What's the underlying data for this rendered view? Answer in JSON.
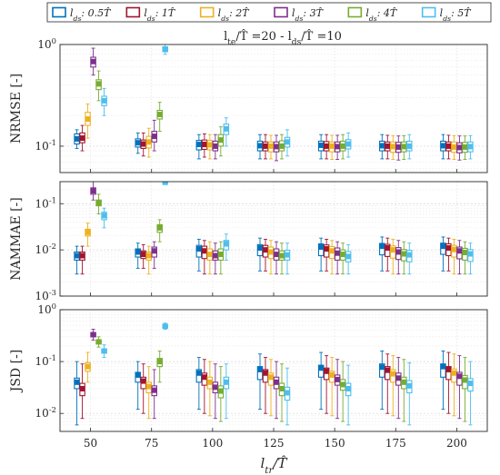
{
  "chart_data": {
    "type": "boxplot",
    "title": "l_te/T̂ =20 - l_ds/T̂ =10",
    "xlabel": "l_tr/T̂",
    "categories": [
      "50",
      "75",
      "100",
      "125",
      "150",
      "175",
      "200"
    ],
    "legend": {
      "placement": "top",
      "entries": [
        {
          "label": "l_ds: 0.5T̂",
          "color": "#0072BD"
        },
        {
          "label": "l_ds: 1T̂",
          "color": "#A2142F"
        },
        {
          "label": "l_ds: 2T̂",
          "color": "#EDB120"
        },
        {
          "label": "l_ds: 3T̂",
          "color": "#7E2F8E"
        },
        {
          "label": "l_ds: 4T̂",
          "color": "#77AC30"
        },
        {
          "label": "l_ds: 5T̂",
          "color": "#4DBEEE"
        }
      ]
    },
    "panels": [
      {
        "ylabel": "NRMSE [-]",
        "yscale": "log",
        "ylim": [
          0.055,
          1
        ],
        "yticks": [
          {
            "v": 1,
            "label": "10^0"
          },
          {
            "v": 0.1,
            "label": "10^-1"
          }
        ],
        "groups": [
          [
            [
              0.095,
              0.105,
              0.118,
              0.132,
              0.145
            ],
            [
              0.09,
              0.108,
              0.12,
              0.135,
              0.16
            ],
            [
              0.12,
              0.16,
              0.185,
              0.215,
              0.26
            ],
            [
              0.5,
              0.6,
              0.68,
              0.75,
              0.92
            ],
            [
              0.28,
              0.36,
              0.41,
              0.45,
              0.55
            ],
            [
              0.2,
              0.25,
              0.28,
              0.31,
              0.37
            ]
          ],
          [
            [
              0.085,
              0.098,
              0.108,
              0.118,
              0.135
            ],
            [
              0.08,
              0.095,
              0.105,
              0.115,
              0.135
            ],
            [
              0.078,
              0.096,
              0.11,
              0.125,
              0.15
            ],
            [
              0.09,
              0.11,
              0.125,
              0.14,
              0.18
            ],
            [
              0.14,
              0.185,
              0.205,
              0.225,
              0.27
            ],
            [
              0.8,
              0.85,
              0.9,
              0.95,
              1.0
            ]
          ],
          [
            [
              0.075,
              0.092,
              0.104,
              0.114,
              0.13
            ],
            [
              0.078,
              0.093,
              0.104,
              0.115,
              0.132
            ],
            [
              0.075,
              0.092,
              0.103,
              0.114,
              0.13
            ],
            [
              0.075,
              0.09,
              0.1,
              0.112,
              0.13
            ],
            [
              0.08,
              0.1,
              0.115,
              0.13,
              0.155
            ],
            [
              0.1,
              0.13,
              0.148,
              0.165,
              0.19
            ]
          ],
          [
            [
              0.075,
              0.09,
              0.101,
              0.112,
              0.13
            ],
            [
              0.075,
              0.09,
              0.1,
              0.11,
              0.13
            ],
            [
              0.075,
              0.088,
              0.1,
              0.11,
              0.128
            ],
            [
              0.072,
              0.088,
              0.099,
              0.11,
              0.128
            ],
            [
              0.075,
              0.09,
              0.1,
              0.113,
              0.13
            ],
            [
              0.08,
              0.098,
              0.11,
              0.122,
              0.145
            ]
          ],
          [
            [
              0.075,
              0.09,
              0.102,
              0.112,
              0.13
            ],
            [
              0.075,
              0.09,
              0.1,
              0.111,
              0.13
            ],
            [
              0.074,
              0.088,
              0.1,
              0.11,
              0.128
            ],
            [
              0.074,
              0.088,
              0.099,
              0.11,
              0.128
            ],
            [
              0.075,
              0.09,
              0.1,
              0.112,
              0.13
            ],
            [
              0.078,
              0.094,
              0.105,
              0.116,
              0.135
            ]
          ],
          [
            [
              0.075,
              0.09,
              0.101,
              0.112,
              0.13
            ],
            [
              0.075,
              0.09,
              0.1,
              0.11,
              0.128
            ],
            [
              0.074,
              0.087,
              0.099,
              0.11,
              0.127
            ],
            [
              0.073,
              0.087,
              0.098,
              0.109,
              0.126
            ],
            [
              0.074,
              0.088,
              0.099,
              0.11,
              0.127
            ],
            [
              0.075,
              0.09,
              0.1,
              0.112,
              0.13
            ]
          ],
          [
            [
              0.075,
              0.09,
              0.101,
              0.112,
              0.13
            ],
            [
              0.075,
              0.09,
              0.1,
              0.11,
              0.128
            ],
            [
              0.074,
              0.087,
              0.098,
              0.11,
              0.127
            ],
            [
              0.073,
              0.086,
              0.097,
              0.108,
              0.126
            ],
            [
              0.074,
              0.087,
              0.098,
              0.109,
              0.126
            ],
            [
              0.075,
              0.088,
              0.099,
              0.11,
              0.127
            ]
          ]
        ]
      },
      {
        "ylabel": "NAMMAE [-]",
        "yscale": "log",
        "ylim": [
          0.001,
          0.3
        ],
        "yticks": [
          {
            "v": 0.1,
            "label": "10^-1"
          },
          {
            "v": 0.01,
            "label": "10^-2"
          },
          {
            "v": 0.001,
            "label": "10^-3"
          }
        ],
        "groups": [
          [
            [
              0.003,
              0.006,
              0.0075,
              0.009,
              0.012
            ],
            [
              0.003,
              0.006,
              0.0075,
              0.009,
              0.012
            ],
            [
              0.012,
              0.02,
              0.024,
              0.028,
              0.038
            ],
            [
              0.12,
              0.16,
              0.19,
              0.22,
              0.3
            ],
            [
              0.06,
              0.09,
              0.105,
              0.12,
              0.16
            ],
            [
              0.03,
              0.045,
              0.055,
              0.065,
              0.08
            ]
          ],
          [
            [
              0.004,
              0.007,
              0.009,
              0.0105,
              0.014
            ],
            [
              0.004,
              0.0065,
              0.008,
              0.0095,
              0.013
            ],
            [
              0.003,
              0.006,
              0.0075,
              0.009,
              0.012
            ],
            [
              0.004,
              0.007,
              0.0095,
              0.0115,
              0.015
            ],
            [
              0.015,
              0.024,
              0.03,
              0.035,
              0.045
            ],
            [
              0.28,
              0.28,
              0.29,
              0.3,
              0.3
            ]
          ],
          [
            [
              0.0035,
              0.007,
              0.0105,
              0.0125,
              0.017
            ],
            [
              0.003,
              0.0065,
              0.0095,
              0.012,
              0.016
            ],
            [
              0.003,
              0.006,
              0.008,
              0.0105,
              0.015
            ],
            [
              0.003,
              0.006,
              0.0075,
              0.0095,
              0.014
            ],
            [
              0.003,
              0.006,
              0.008,
              0.0105,
              0.015
            ],
            [
              0.006,
              0.01,
              0.0135,
              0.016,
              0.022
            ]
          ],
          [
            [
              0.0035,
              0.0075,
              0.011,
              0.013,
              0.018
            ],
            [
              0.0035,
              0.007,
              0.01,
              0.0125,
              0.017
            ],
            [
              0.003,
              0.0065,
              0.009,
              0.0115,
              0.016
            ],
            [
              0.003,
              0.006,
              0.008,
              0.0105,
              0.015
            ],
            [
              0.003,
              0.006,
              0.0075,
              0.0095,
              0.014
            ],
            [
              0.003,
              0.006,
              0.0078,
              0.0098,
              0.014
            ]
          ],
          [
            [
              0.0035,
              0.0075,
              0.0115,
              0.0135,
              0.018
            ],
            [
              0.0035,
              0.007,
              0.0105,
              0.0128,
              0.017
            ],
            [
              0.003,
              0.0065,
              0.0095,
              0.0118,
              0.016
            ],
            [
              0.003,
              0.006,
              0.0085,
              0.011,
              0.015
            ],
            [
              0.003,
              0.006,
              0.008,
              0.01,
              0.014
            ],
            [
              0.003,
              0.0055,
              0.0072,
              0.0092,
              0.013
            ]
          ],
          [
            [
              0.0035,
              0.0078,
              0.012,
              0.0138,
              0.019
            ],
            [
              0.0035,
              0.0072,
              0.011,
              0.0132,
              0.018
            ],
            [
              0.003,
              0.0066,
              0.01,
              0.0122,
              0.017
            ],
            [
              0.003,
              0.0062,
              0.009,
              0.0112,
              0.016
            ],
            [
              0.003,
              0.0058,
              0.0082,
              0.0102,
              0.015
            ],
            [
              0.003,
              0.0055,
              0.0078,
              0.0098,
              0.014
            ]
          ],
          [
            [
              0.0035,
              0.008,
              0.012,
              0.014,
              0.019
            ],
            [
              0.0035,
              0.0075,
              0.011,
              0.0135,
              0.018
            ],
            [
              0.003,
              0.007,
              0.0102,
              0.0125,
              0.017
            ],
            [
              0.003,
              0.0064,
              0.0095,
              0.0115,
              0.016
            ],
            [
              0.003,
              0.006,
              0.0088,
              0.0108,
              0.015
            ],
            [
              0.003,
              0.0056,
              0.0082,
              0.0102,
              0.014
            ]
          ]
        ]
      },
      {
        "ylabel": "JSD [-]",
        "yscale": "log",
        "ylim": [
          0.0045,
          1
        ],
        "yticks": [
          {
            "v": 1,
            "label": "10^0"
          },
          {
            "v": 0.1,
            "label": "10^-1"
          },
          {
            "v": 0.01,
            "label": "10^-2"
          }
        ],
        "groups": [
          [
            [
              0.006,
              0.03,
              0.04,
              0.048,
              0.1
            ],
            [
              0.008,
              0.022,
              0.03,
              0.038,
              0.09
            ],
            [
              0.04,
              0.065,
              0.08,
              0.095,
              0.15
            ],
            [
              0.26,
              0.3,
              0.33,
              0.36,
              0.42
            ],
            [
              0.19,
              0.22,
              0.24,
              0.26,
              0.3
            ],
            [
              0.12,
              0.145,
              0.16,
              0.175,
              0.21
            ]
          ],
          [
            [
              0.012,
              0.04,
              0.055,
              0.062,
              0.1
            ],
            [
              0.01,
              0.03,
              0.042,
              0.05,
              0.09
            ],
            [
              0.008,
              0.025,
              0.033,
              0.04,
              0.08
            ],
            [
              0.008,
              0.022,
              0.028,
              0.034,
              0.07
            ],
            [
              0.04,
              0.08,
              0.1,
              0.115,
              0.16
            ],
            [
              0.42,
              0.45,
              0.48,
              0.5,
              0.55
            ]
          ],
          [
            [
              0.012,
              0.04,
              0.06,
              0.07,
              0.12
            ],
            [
              0.01,
              0.035,
              0.05,
              0.06,
              0.11
            ],
            [
              0.009,
              0.03,
              0.04,
              0.05,
              0.1
            ],
            [
              0.008,
              0.025,
              0.032,
              0.04,
              0.09
            ],
            [
              0.007,
              0.02,
              0.027,
              0.034,
              0.08
            ],
            [
              0.008,
              0.03,
              0.04,
              0.05,
              0.09
            ]
          ],
          [
            [
              0.012,
              0.045,
              0.07,
              0.08,
              0.14
            ],
            [
              0.01,
              0.04,
              0.06,
              0.07,
              0.12
            ],
            [
              0.009,
              0.035,
              0.05,
              0.06,
              0.11
            ],
            [
              0.008,
              0.03,
              0.04,
              0.05,
              0.1
            ],
            [
              0.007,
              0.022,
              0.03,
              0.038,
              0.09
            ],
            [
              0.006,
              0.018,
              0.025,
              0.032,
              0.075
            ]
          ],
          [
            [
              0.012,
              0.05,
              0.075,
              0.085,
              0.15
            ],
            [
              0.01,
              0.045,
              0.065,
              0.075,
              0.13
            ],
            [
              0.009,
              0.04,
              0.055,
              0.065,
              0.12
            ],
            [
              0.008,
              0.035,
              0.045,
              0.055,
              0.11
            ],
            [
              0.007,
              0.028,
              0.036,
              0.045,
              0.1
            ],
            [
              0.006,
              0.022,
              0.03,
              0.038,
              0.085
            ]
          ],
          [
            [
              0.012,
              0.05,
              0.078,
              0.09,
              0.16
            ],
            [
              0.01,
              0.045,
              0.068,
              0.08,
              0.14
            ],
            [
              0.009,
              0.04,
              0.058,
              0.07,
              0.13
            ],
            [
              0.008,
              0.035,
              0.048,
              0.06,
              0.12
            ],
            [
              0.007,
              0.03,
              0.04,
              0.05,
              0.11
            ],
            [
              0.006,
              0.025,
              0.034,
              0.043,
              0.095
            ]
          ],
          [
            [
              0.012,
              0.05,
              0.08,
              0.09,
              0.16
            ],
            [
              0.01,
              0.045,
              0.07,
              0.08,
              0.15
            ],
            [
              0.009,
              0.04,
              0.06,
              0.072,
              0.14
            ],
            [
              0.008,
              0.035,
              0.052,
              0.062,
              0.13
            ],
            [
              0.007,
              0.03,
              0.044,
              0.054,
              0.12
            ],
            [
              0.006,
              0.027,
              0.038,
              0.047,
              0.1
            ]
          ]
        ]
      }
    ]
  }
}
